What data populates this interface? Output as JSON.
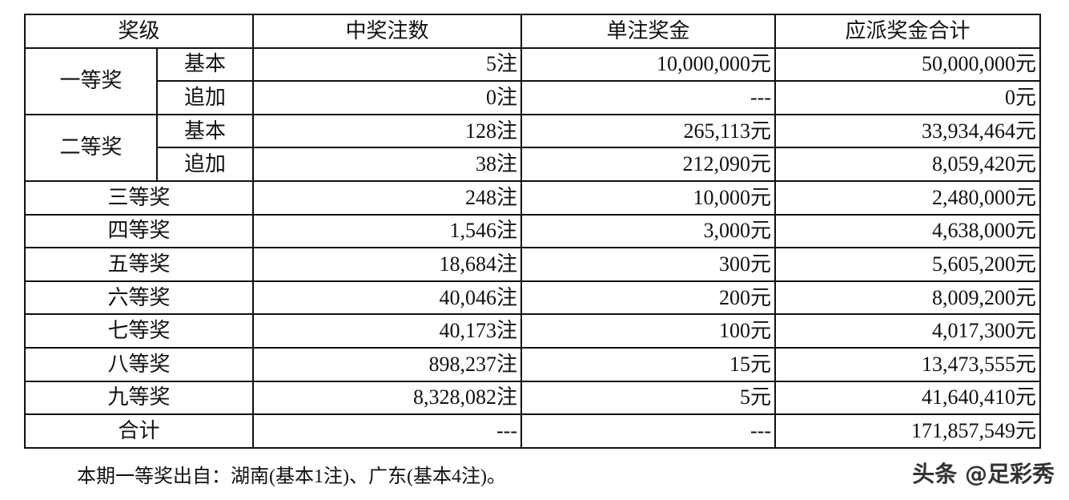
{
  "headers": [
    "奖级",
    "中奖注数",
    "单注奖金",
    "应派奖金合计"
  ],
  "grouped_rows": [
    {
      "level": "一等奖",
      "subs": [
        {
          "type": "基本",
          "count": "5注",
          "prize": "10,000,000元",
          "total": "50,000,000元"
        },
        {
          "type": "追加",
          "count": "0注",
          "prize": "---",
          "total": "0元"
        }
      ]
    },
    {
      "level": "二等奖",
      "subs": [
        {
          "type": "基本",
          "count": "128注",
          "prize": "265,113元",
          "total": "33,934,464元"
        },
        {
          "type": "追加",
          "count": "38注",
          "prize": "212,090元",
          "total": "8,059,420元"
        }
      ]
    }
  ],
  "rows": [
    {
      "level": "三等奖",
      "count": "248注",
      "prize": "10,000元",
      "total": "2,480,000元"
    },
    {
      "level": "四等奖",
      "count": "1,546注",
      "prize": "3,000元",
      "total": "4,638,000元"
    },
    {
      "level": "五等奖",
      "count": "18,684注",
      "prize": "300元",
      "total": "5,605,200元"
    },
    {
      "level": "六等奖",
      "count": "40,046注",
      "prize": "200元",
      "total": "8,009,200元"
    },
    {
      "level": "七等奖",
      "count": "40,173注",
      "prize": "100元",
      "total": "4,017,300元"
    },
    {
      "level": "八等奖",
      "count": "898,237注",
      "prize": "15元",
      "total": "13,473,555元"
    },
    {
      "level": "九等奖",
      "count": "8,328,082注",
      "prize": "5元",
      "total": "41,640,410元"
    },
    {
      "level": "合计",
      "count": "---",
      "prize": "---",
      "total": "171,857,549元"
    }
  ],
  "note": "本期一等奖出自：湖南(基本1注)、广东(基本4注)。",
  "watermark": "头条 @足彩秀"
}
